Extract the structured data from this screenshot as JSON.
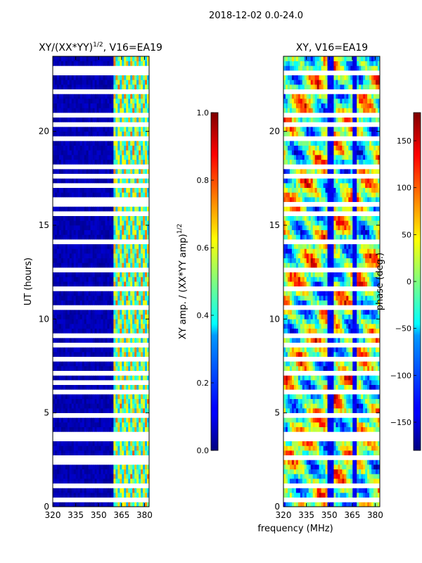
{
  "figure": {
    "suptitle": "2018-12-02 0.0-24.0",
    "shared_xlabel": "frequency (MHz)"
  },
  "chart_data": [
    {
      "type": "heatmap",
      "title_main": "XY/(XX*YY)",
      "title_exp": "1/2",
      "title_rest": ", V16=EA19",
      "xlabel": "",
      "ylabel": "UT (hours)",
      "xlim": [
        320,
        383
      ],
      "ylim": [
        0,
        24
      ],
      "xticks": [
        "320",
        "335",
        "350",
        "365",
        "380"
      ],
      "xtick_values": [
        320,
        335,
        350,
        365,
        380
      ],
      "yticks": [
        "0",
        "5",
        "10",
        "15",
        "20"
      ],
      "ytick_values": [
        0,
        5,
        10,
        15,
        20
      ],
      "colorbar": {
        "label_main": "XY amp. / (XX*YY amp)",
        "label_exp": "1/2",
        "range": [
          0.0,
          1.0
        ],
        "ticks": [
          "0.0",
          "0.2",
          "0.4",
          "0.6",
          "0.8",
          "1.0"
        ],
        "tick_values": [
          0.0,
          0.2,
          0.4,
          0.6,
          0.8,
          1.0
        ],
        "colormap": "jet"
      },
      "description_data": {
        "background_value": 0.02,
        "active_band_mhz": [
          360,
          383
        ],
        "active_values": [
          0.3,
          0.8
        ],
        "flagged_hours": [
          0.3,
          1.1,
          2.2,
          2.6,
          3.6,
          3.7,
          4.8,
          5.9,
          6.6,
          6.9,
          7.1,
          7.8,
          8.4,
          8.6,
          8.9,
          10.4,
          11.4,
          11.6,
          12.5,
          14.0,
          14.1,
          15.4,
          16.0,
          16.3,
          16.9,
          17.6,
          18.1,
          19.4,
          20.2,
          20.8,
          22.1,
          23.1,
          23.3
        ]
      }
    },
    {
      "type": "heatmap",
      "title": "XY, V16=EA19",
      "xlabel": "frequency (MHz)",
      "ylabel": "",
      "xlim": [
        320,
        383
      ],
      "ylim": [
        0,
        24
      ],
      "xticks": [
        "320",
        "335",
        "350",
        "365",
        "380"
      ],
      "xtick_values": [
        320,
        335,
        350,
        365,
        380
      ],
      "yticks": [
        "0",
        "5",
        "10",
        "15",
        "20"
      ],
      "ytick_values": [
        0,
        5,
        10,
        15,
        20
      ],
      "colorbar": {
        "label": "phase (deg.)",
        "range": [
          -180,
          180
        ],
        "ticks": [
          "−150",
          "−100",
          "−50",
          "0",
          "50",
          "100",
          "150"
        ],
        "tick_values": [
          -150,
          -100,
          -50,
          0,
          50,
          100,
          150
        ],
        "colormap": "jet"
      },
      "description_data": {
        "stable_channels_mhz": [
          350,
          351.5,
          366,
          367.5
        ],
        "flagged_hours": [
          0.3,
          1.1,
          2.6,
          3.6,
          3.7,
          4.8,
          5.9,
          6.9,
          7.8,
          8.6,
          8.9,
          10.4,
          11.4,
          12.5,
          14.0,
          14.1,
          15.4,
          16.0,
          17.6,
          18.1,
          19.4,
          20.2,
          20.8,
          22.1,
          23.1
        ]
      }
    }
  ]
}
